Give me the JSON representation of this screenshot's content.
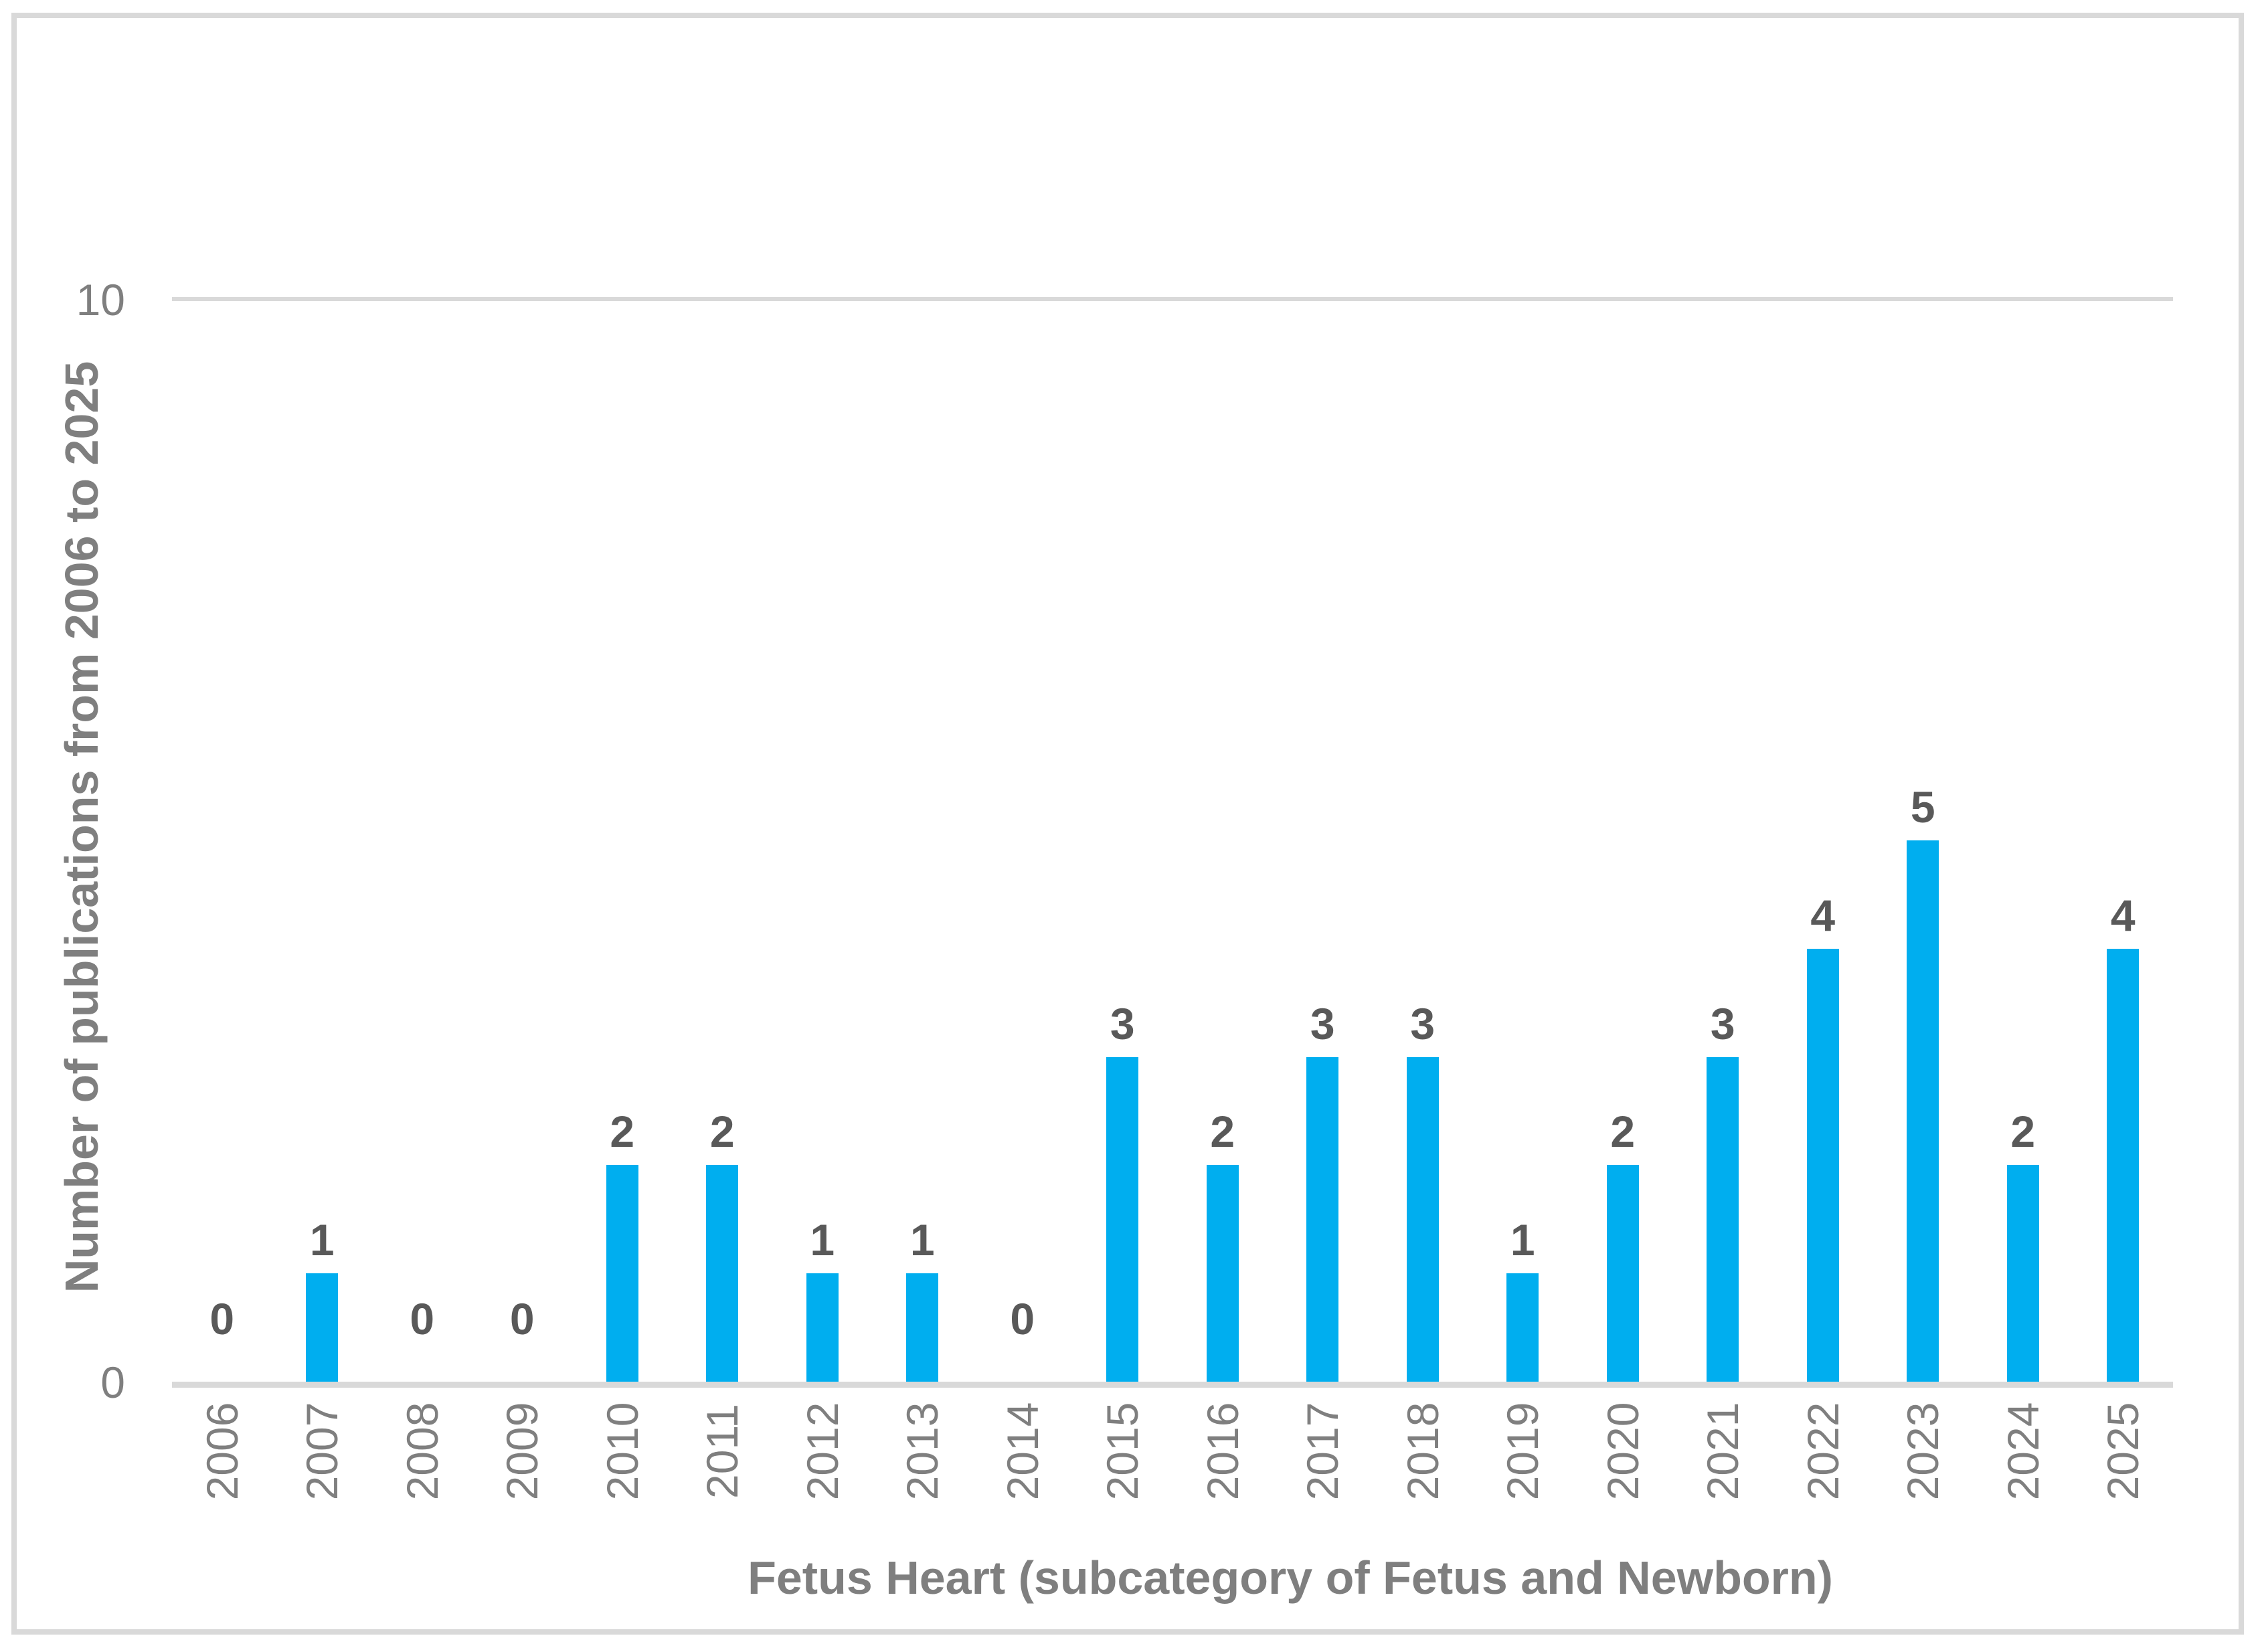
{
  "figure": {
    "frame_border_color": "#d9d9d9",
    "background_color": "#ffffff"
  },
  "chart_data": {
    "type": "bar",
    "title": "",
    "xlabel": "Fetus Heart (subcategory of Fetus and Newborn)",
    "ylabel": "Number of publications from 2006 to 2025",
    "categories": [
      "2006",
      "2007",
      "2008",
      "2009",
      "2010",
      "2011",
      "2012",
      "2013",
      "2014",
      "2015",
      "2016",
      "2017",
      "2018",
      "2019",
      "2020",
      "2021",
      "2022",
      "2023",
      "2024",
      "2025"
    ],
    "values": [
      0,
      1,
      0,
      0,
      2,
      2,
      1,
      1,
      0,
      3,
      2,
      3,
      3,
      1,
      2,
      3,
      4,
      5,
      2,
      4
    ],
    "data_labels": [
      "0",
      "1",
      "0",
      "0",
      "2",
      "2",
      "1",
      "1",
      "0",
      "3",
      "2",
      "3",
      "3",
      "1",
      "2",
      "3",
      "4",
      "5",
      "2",
      "4"
    ],
    "ylim": [
      0,
      10
    ],
    "ytick_labels": [
      "10",
      "0"
    ],
    "grid": "horizontal gridline at y=10 only",
    "legend": "none",
    "data_label_position": "outside-end",
    "x_tick_rotation_degrees": -90,
    "colors": {
      "bar": "#00aeef",
      "axis_line": "#d9d9d9",
      "gridline": "#d9d9d9",
      "tick_text": "#7f7f7f",
      "axis_title_text": "#7f7f7f",
      "data_label_text": "#595959"
    }
  }
}
